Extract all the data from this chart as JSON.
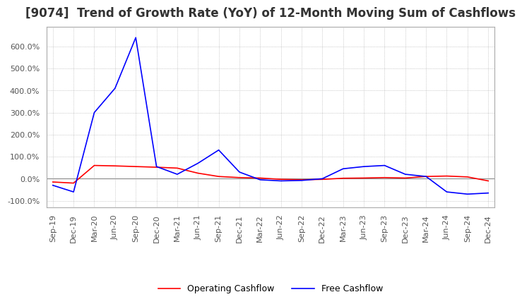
{
  "title": "[9074]  Trend of Growth Rate (YoY) of 12-Month Moving Sum of Cashflows",
  "title_fontsize": 12,
  "title_color": "#333333",
  "background_color": "#ffffff",
  "grid_color": "#aaaaaa",
  "ylim": [
    -130,
    690
  ],
  "yticks": [
    -100,
    0,
    100,
    200,
    300,
    400,
    500,
    600
  ],
  "ytick_labels": [
    "-100.0%",
    "0.0%",
    "100.0%",
    "200.0%",
    "300.0%",
    "400.0%",
    "500.0%",
    "600.0%"
  ],
  "xtick_labels": [
    "Sep-19",
    "Dec-19",
    "Mar-20",
    "Jun-20",
    "Sep-20",
    "Dec-20",
    "Mar-21",
    "Jun-21",
    "Sep-21",
    "Dec-21",
    "Mar-22",
    "Jun-22",
    "Sep-22",
    "Dec-22",
    "Mar-23",
    "Jun-23",
    "Sep-23",
    "Dec-23",
    "Mar-24",
    "Jun-24",
    "Sep-24",
    "Dec-24"
  ],
  "operating_cashflow": {
    "label": "Operating Cashflow",
    "color": "#ff0000",
    "data": [
      -15,
      -20,
      60,
      58,
      55,
      52,
      48,
      25,
      10,
      5,
      3,
      -3,
      -5,
      -3,
      2,
      3,
      5,
      3,
      10,
      12,
      8,
      -10
    ]
  },
  "free_cashflow": {
    "label": "Free Cashflow",
    "color": "#0000ff",
    "data": [
      -30,
      -60,
      300,
      410,
      640,
      55,
      20,
      70,
      130,
      30,
      -5,
      -10,
      -8,
      0,
      45,
      55,
      60,
      20,
      10,
      -60,
      -70,
      -65
    ]
  },
  "linewidth": 1.2
}
